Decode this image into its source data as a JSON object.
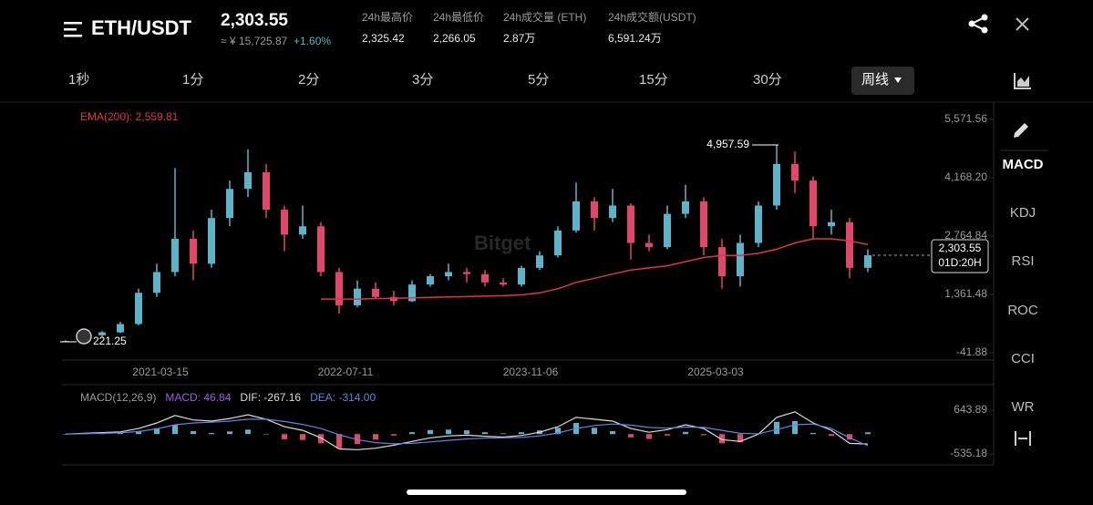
{
  "header": {
    "pair": "ETH/USDT",
    "price": "2,303.55",
    "approx": "≈ ¥ 15,725.87",
    "change": "+1.60%",
    "stats": [
      {
        "label": "24h最高价",
        "value": "2,325.42"
      },
      {
        "label": "24h最低价",
        "value": "2,266.05"
      },
      {
        "label": "24h成交量 (ETH)",
        "value": "2.87万"
      },
      {
        "label": "24h成交额(USDT)",
        "value": "6,591.24万"
      }
    ]
  },
  "timeframes": [
    "1秒",
    "1分",
    "2分",
    "3分",
    "5分",
    "15分",
    "30分"
  ],
  "selected_timeframe": "周线",
  "indicators": [
    "MACD",
    "KDJ",
    "RSI",
    "ROC",
    "CCI",
    "WR"
  ],
  "watermark": "Bitget",
  "chart_data": [
    {
      "type": "candlestick",
      "up_color": "#5db4c9",
      "down_color": "#e0476a",
      "xlim": [
        -0.2,
        50.9
      ],
      "xticks": [
        {
          "value": 5.2,
          "label": "2021-03-15"
        },
        {
          "value": 15.35,
          "label": "2022-07-11"
        },
        {
          "value": 25.5,
          "label": "2023-11-06"
        },
        {
          "value": 35.65,
          "label": "2025-03-03"
        }
      ],
      "ylim": [
        -217,
        5966
      ],
      "yticks": [
        {
          "value": 5571.56,
          "label": "5,571.56"
        },
        {
          "value": 4168.2,
          "label": "4,168.20"
        },
        {
          "value": 2764.84,
          "label": "2,764.84"
        },
        {
          "value": 1361.48,
          "label": "1,361.48"
        },
        -41.88
      ],
      "ohlc": [
        [
          220,
          260,
          221.25,
          240
        ],
        [
          240,
          400,
          230,
          380
        ],
        [
          380,
          480,
          340,
          450
        ],
        [
          450,
          700,
          430,
          650
        ],
        [
          650,
          1500,
          620,
          1400
        ],
        [
          1400,
          2100,
          1300,
          1900
        ],
        [
          1900,
          4400,
          1800,
          2700
        ],
        [
          2700,
          2900,
          1700,
          2100
        ],
        [
          2100,
          3400,
          2000,
          3200
        ],
        [
          3200,
          4100,
          3000,
          3900
        ],
        [
          3900,
          4850,
          3700,
          4300
        ],
        [
          4300,
          4500,
          3200,
          3400
        ],
        [
          3400,
          3500,
          2400,
          2800
        ],
        [
          2800,
          3500,
          2700,
          3000
        ],
        [
          3000,
          3100,
          1800,
          1900
        ],
        [
          1900,
          2000,
          900,
          1100
        ],
        [
          1100,
          1700,
          1050,
          1500
        ],
        [
          1500,
          1650,
          1250,
          1300
        ],
        [
          1300,
          1450,
          1100,
          1200
        ],
        [
          1200,
          1700,
          1180,
          1600
        ],
        [
          1600,
          1850,
          1550,
          1800
        ],
        [
          1800,
          2100,
          1700,
          1900
        ],
        [
          1900,
          2000,
          1650,
          1850
        ],
        [
          1850,
          1950,
          1550,
          1650
        ],
        [
          1650,
          1750,
          1550,
          1600
        ],
        [
          1600,
          2050,
          1550,
          2000
        ],
        [
          2000,
          2400,
          1950,
          2300
        ],
        [
          2300,
          3000,
          2250,
          2900
        ],
        [
          2900,
          4050,
          2850,
          3600
        ],
        [
          3600,
          3700,
          2900,
          3200
        ],
        [
          3200,
          3900,
          3100,
          3500
        ],
        [
          3500,
          3550,
          2200,
          2600
        ],
        [
          2600,
          2800,
          2400,
          2500
        ],
        [
          2500,
          3500,
          2450,
          3300
        ],
        [
          3300,
          4000,
          3200,
          3600
        ],
        [
          3600,
          3700,
          2300,
          2500
        ],
        [
          2500,
          2700,
          1500,
          1800
        ],
        [
          1800,
          2800,
          1550,
          2600
        ],
        [
          2600,
          3600,
          2500,
          3500
        ],
        [
          3500,
          4957.59,
          3400,
          4500
        ],
        [
          4500,
          4800,
          3800,
          4100
        ],
        [
          4100,
          4200,
          2700,
          3000
        ],
        [
          3000,
          3400,
          2800,
          3100
        ],
        [
          3100,
          3200,
          1750,
          2000
        ],
        [
          2000,
          2450,
          1900,
          2303.55
        ]
      ],
      "series": [
        {
          "name": "EMA(200)",
          "color": "#e0334f",
          "values": [
            null,
            null,
            null,
            null,
            null,
            null,
            null,
            null,
            null,
            null,
            null,
            null,
            null,
            null,
            1250,
            1250,
            1250,
            1260,
            1270,
            1280,
            1290,
            1300,
            1310,
            1320,
            1330,
            1350,
            1400,
            1500,
            1650,
            1750,
            1850,
            1950,
            2000,
            2050,
            2150,
            2250,
            2300,
            2300,
            2350,
            2450,
            2600,
            2700,
            2700,
            2650,
            2559.81
          ]
        }
      ],
      "legend": "EMA(200): 2,559.81",
      "annotations": [
        {
          "value": 4957.59,
          "label": "4,957.59"
        },
        {
          "value": 221.25,
          "label": "221.25"
        }
      ],
      "last_price": {
        "value": 2303.55,
        "label": "2,303.55"
      },
      "countdown": "01D:20H"
    },
    {
      "type": "macd",
      "xlim": [
        -0.2,
        50.9
      ],
      "ylim": [
        -830,
        1184
      ],
      "yticks": [
        643.89,
        -535.18
      ],
      "legend": [
        {
          "text": "MACD(12,26,9)",
          "color": "#9b9b9b"
        },
        {
          "text": "MACD: 46.84",
          "color": "#a05ae0"
        },
        {
          "text": "DIF: -267.16",
          "color": "#dcdcdc"
        },
        {
          "text": "DEA: -314.00",
          "color": "#5b86e0"
        }
      ],
      "hist_up_color": "#5db4c9",
      "hist_down_color": "#e0476a",
      "macd": [
        0,
        10,
        20,
        25,
        80,
        160,
        250,
        80,
        30,
        70,
        120,
        0,
        -140,
        -160,
        -250,
        -380,
        -270,
        -150,
        -40,
        50,
        110,
        120,
        100,
        50,
        20,
        50,
        100,
        170,
        300,
        170,
        80,
        -90,
        -130,
        -40,
        60,
        -30,
        -250,
        -220,
        -10,
        330,
        350,
        30,
        -50,
        -150,
        46.84
      ],
      "series": [
        {
          "name": "DIF",
          "color": "#dcdcdc",
          "values": [
            0,
            20,
            40,
            60,
            150,
            300,
            500,
            380,
            350,
            420,
            520,
            400,
            200,
            100,
            -100,
            -400,
            -420,
            -380,
            -300,
            -200,
            -100,
            -50,
            -30,
            -60,
            -80,
            -40,
            50,
            200,
            450,
            400,
            350,
            150,
            50,
            120,
            250,
            150,
            -150,
            -200,
            0,
            450,
            600,
            300,
            100,
            -250,
            -267.16
          ]
        },
        {
          "name": "DEA",
          "color": "#5b86e0",
          "values": [
            0,
            10,
            20,
            35,
            70,
            140,
            250,
            300,
            320,
            350,
            400,
            400,
            340,
            260,
            150,
            -20,
            -150,
            -230,
            -260,
            -250,
            -210,
            -170,
            -130,
            -110,
            -100,
            -90,
            -50,
            30,
            150,
            230,
            270,
            240,
            180,
            160,
            190,
            180,
            100,
            20,
            10,
            120,
            250,
            270,
            150,
            -100,
            -314
          ]
        }
      ]
    }
  ]
}
